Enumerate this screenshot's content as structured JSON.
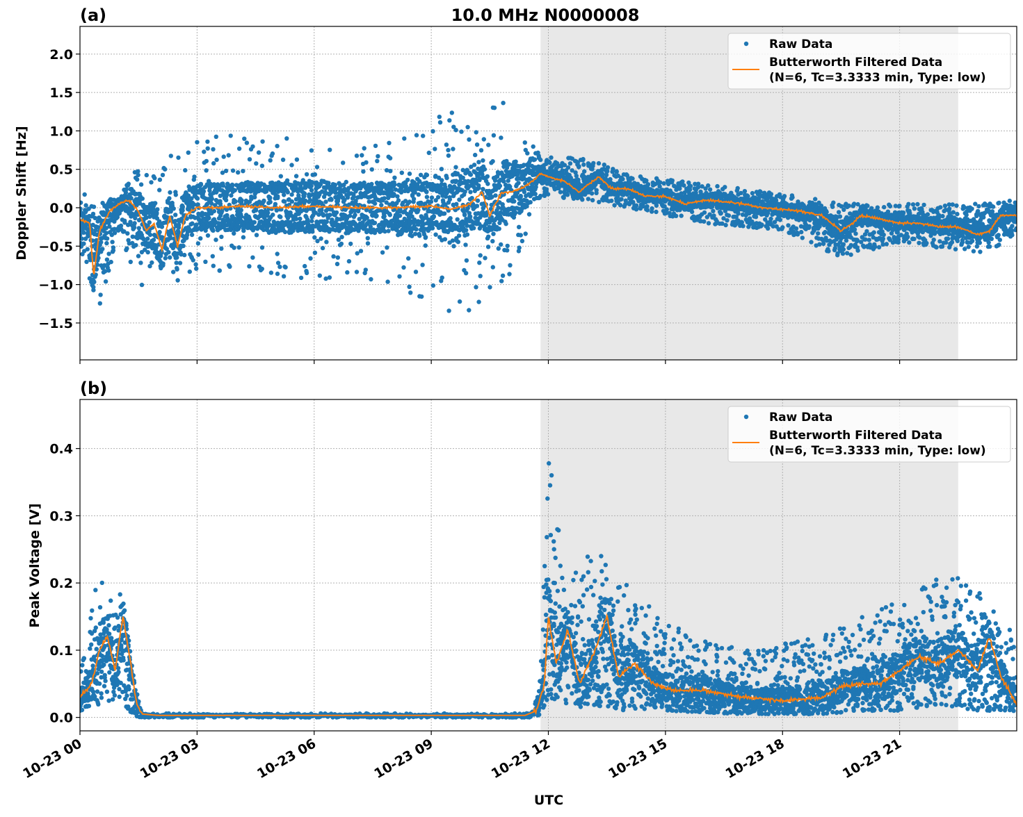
{
  "chart_data": [
    {
      "type": "scatter",
      "panel_label": "(a)",
      "title": "10.0 MHz N0000008",
      "xlabel": "",
      "ylabel": "Doppler Shift [Hz]",
      "xlim_hours": [
        0,
        24
      ],
      "ylim": [
        -1.98,
        2.36
      ],
      "yticks": [
        2.0,
        1.5,
        1.0,
        0.5,
        0.0,
        -0.5,
        -1.0,
        -1.5
      ],
      "ytick_labels": [
        "2.0",
        "1.5",
        "1.0",
        "0.5",
        "0.0",
        "−0.5",
        "−1.0",
        "−1.5"
      ],
      "grid": true,
      "legend_placement": "top-right",
      "shaded_region_hours": [
        11.8,
        22.5
      ],
      "series": [
        {
          "name": "Raw Data",
          "style": "points",
          "color": "#1f77b4",
          "envelope_hours_min_max": [
            [
              0,
              -0.6,
              0.2
            ],
            [
              0.5,
              -1.3,
              0.1
            ],
            [
              1,
              -0.3,
              0.15
            ],
            [
              1.5,
              -1.0,
              0.6
            ],
            [
              2,
              -1.1,
              0.8
            ],
            [
              3,
              -0.8,
              0.9
            ],
            [
              5,
              -0.9,
              1.0
            ],
            [
              8,
              -1.0,
              0.9
            ],
            [
              9,
              -1.3,
              1.2
            ],
            [
              10,
              -1.4,
              1.3
            ],
            [
              11,
              -0.9,
              1.4
            ],
            [
              11.8,
              0.15,
              0.7
            ],
            [
              13,
              0.1,
              0.65
            ],
            [
              14,
              0.0,
              0.45
            ],
            [
              16,
              -0.2,
              0.3
            ],
            [
              18,
              -0.3,
              0.2
            ],
            [
              19.5,
              -0.65,
              0.05
            ],
            [
              21,
              -0.45,
              0.05
            ],
            [
              23,
              -0.6,
              0.05
            ],
            [
              24,
              -0.4,
              0.1
            ]
          ]
        },
        {
          "name": "Butterworth Filtered Data\n(N=6, Tc=3.3333 min, Type: low)",
          "style": "line",
          "color": "#ff7f0e",
          "points_hours_value": [
            [
              0,
              -0.15
            ],
            [
              0.25,
              -0.2
            ],
            [
              0.35,
              -0.9
            ],
            [
              0.5,
              -0.3
            ],
            [
              0.75,
              -0.05
            ],
            [
              1.0,
              0.05
            ],
            [
              1.25,
              0.1
            ],
            [
              1.5,
              -0.05
            ],
            [
              1.7,
              -0.3
            ],
            [
              1.9,
              -0.2
            ],
            [
              2.1,
              -0.55
            ],
            [
              2.3,
              -0.1
            ],
            [
              2.5,
              -0.5
            ],
            [
              2.7,
              -0.1
            ],
            [
              3,
              0
            ],
            [
              3.5,
              0
            ],
            [
              4,
              0.02
            ],
            [
              5,
              0
            ],
            [
              6,
              0.02
            ],
            [
              7,
              0
            ],
            [
              8,
              0
            ],
            [
              9,
              0.02
            ],
            [
              9.5,
              -0.02
            ],
            [
              10,
              0.05
            ],
            [
              10.3,
              0.2
            ],
            [
              10.5,
              -0.1
            ],
            [
              10.8,
              0.2
            ],
            [
              11,
              0.2
            ],
            [
              11.3,
              0.25
            ],
            [
              11.6,
              0.35
            ],
            [
              11.8,
              0.45
            ],
            [
              12,
              0.4
            ],
            [
              12.4,
              0.35
            ],
            [
              12.8,
              0.2
            ],
            [
              13,
              0.3
            ],
            [
              13.3,
              0.4
            ],
            [
              13.6,
              0.25
            ],
            [
              14,
              0.25
            ],
            [
              14.5,
              0.15
            ],
            [
              15,
              0.15
            ],
            [
              15.5,
              0.05
            ],
            [
              16,
              0.1
            ],
            [
              16.5,
              0.08
            ],
            [
              17,
              0.05
            ],
            [
              17.5,
              0
            ],
            [
              18,
              -0.02
            ],
            [
              18.5,
              -0.05
            ],
            [
              19,
              -0.1
            ],
            [
              19.5,
              -0.3
            ],
            [
              19.8,
              -0.2
            ],
            [
              20,
              -0.1
            ],
            [
              20.5,
              -0.15
            ],
            [
              21,
              -0.2
            ],
            [
              21.5,
              -0.2
            ],
            [
              22,
              -0.25
            ],
            [
              22.5,
              -0.25
            ],
            [
              23,
              -0.35
            ],
            [
              23.3,
              -0.3
            ],
            [
              23.6,
              -0.1
            ],
            [
              24,
              -0.1
            ]
          ]
        }
      ],
      "legend": [
        "Raw Data",
        "Butterworth Filtered Data",
        "(N=6, Tc=3.3333 min, Type: low)"
      ]
    },
    {
      "type": "scatter",
      "panel_label": "(b)",
      "xlabel": "UTC",
      "ylabel": "Peak Voltage [V]",
      "xlim_hours": [
        0,
        24
      ],
      "ylim": [
        -0.02,
        0.473
      ],
      "yticks": [
        0.4,
        0.3,
        0.2,
        0.1,
        0.0
      ],
      "ytick_labels": [
        "0.4",
        "0.3",
        "0.2",
        "0.1",
        "0.0"
      ],
      "xtick_hours": [
        0,
        3,
        6,
        9,
        12,
        15,
        18,
        21
      ],
      "xtick_labels": [
        "10-23 00",
        "10-23 03",
        "10-23 06",
        "10-23 09",
        "10-23 12",
        "10-23 15",
        "10-23 18",
        "10-23 21"
      ],
      "grid": true,
      "legend_placement": "top-right",
      "shaded_region_hours": [
        11.8,
        22.5
      ],
      "series": [
        {
          "name": "Raw Data",
          "style": "points",
          "color": "#1f77b4",
          "envelope_hours_min_max": [
            [
              0,
              0.01,
              0.07
            ],
            [
              0.5,
              0.02,
              0.24
            ],
            [
              1.0,
              0.03,
              0.22
            ],
            [
              1.4,
              0.0,
              0.05
            ],
            [
              1.6,
              0,
              0.006
            ],
            [
              11.6,
              0,
              0.006
            ],
            [
              11.8,
              0.005,
              0.06
            ],
            [
              12,
              0.03,
              0.4
            ],
            [
              12.5,
              0.02,
              0.18
            ],
            [
              13,
              0.02,
              0.27
            ],
            [
              14,
              0.01,
              0.2
            ],
            [
              15,
              0.01,
              0.14
            ],
            [
              17,
              0.005,
              0.1
            ],
            [
              19,
              0.005,
              0.12
            ],
            [
              20,
              0.01,
              0.15
            ],
            [
              21,
              0.01,
              0.18
            ],
            [
              22,
              0.02,
              0.22
            ],
            [
              23,
              0.01,
              0.2
            ],
            [
              24,
              0.01,
              0.12
            ]
          ]
        },
        {
          "name": "Butterworth Filtered Data\n(N=6, Tc=3.3333 min, Type: low)",
          "style": "line",
          "color": "#ff7f0e",
          "points_hours_value": [
            [
              0,
              0.03
            ],
            [
              0.3,
              0.05
            ],
            [
              0.5,
              0.1
            ],
            [
              0.7,
              0.12
            ],
            [
              0.9,
              0.07
            ],
            [
              1.1,
              0.15
            ],
            [
              1.3,
              0.08
            ],
            [
              1.45,
              0.02
            ],
            [
              1.6,
              0.005
            ],
            [
              2,
              0.003
            ],
            [
              11.4,
              0.003
            ],
            [
              11.7,
              0.01
            ],
            [
              11.9,
              0.05
            ],
            [
              12,
              0.15
            ],
            [
              12.2,
              0.08
            ],
            [
              12.5,
              0.13
            ],
            [
              12.8,
              0.05
            ],
            [
              13.2,
              0.1
            ],
            [
              13.5,
              0.15
            ],
            [
              13.8,
              0.06
            ],
            [
              14.2,
              0.08
            ],
            [
              14.7,
              0.05
            ],
            [
              15.2,
              0.04
            ],
            [
              16,
              0.04
            ],
            [
              17,
              0.03
            ],
            [
              18,
              0.025
            ],
            [
              19,
              0.03
            ],
            [
              19.5,
              0.045
            ],
            [
              20,
              0.05
            ],
            [
              20.5,
              0.05
            ],
            [
              21,
              0.07
            ],
            [
              21.5,
              0.09
            ],
            [
              22,
              0.08
            ],
            [
              22.5,
              0.1
            ],
            [
              23,
              0.07
            ],
            [
              23.3,
              0.12
            ],
            [
              23.6,
              0.06
            ],
            [
              24,
              0.02
            ]
          ]
        }
      ],
      "legend": [
        "Raw Data",
        "Butterworth Filtered Data",
        "(N=6, Tc=3.3333 min, Type: low)"
      ]
    }
  ]
}
